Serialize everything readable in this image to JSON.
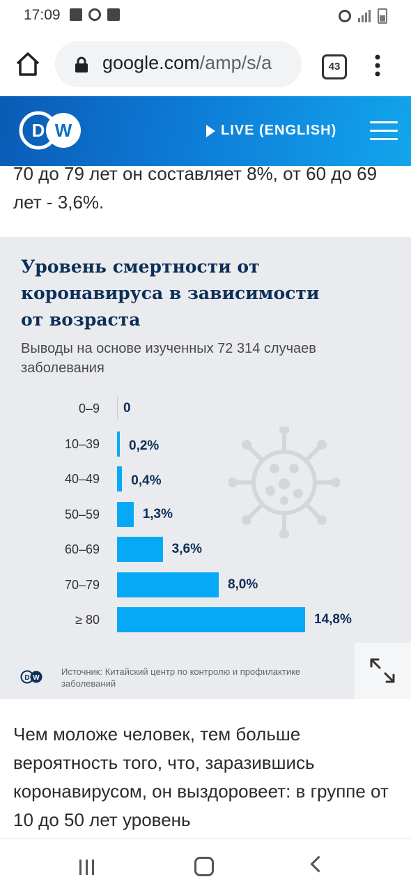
{
  "status_bar": {
    "time": "17:09"
  },
  "browser": {
    "url_host": "google.com",
    "url_path": "/amp/s/a",
    "tab_count": "43"
  },
  "site_header": {
    "logo": "DW",
    "live_label": "LIVE (ENGLISH)"
  },
  "article": {
    "text_top": "70 до 79 лет он составляет 8%, от 60 до 69 лет - 3,6%.",
    "text_bottom": "Чем моложе человек, тем больше вероятность того, что, заразившись коронавирусом, он выздоровеет: в группе от 10 до 50 лет уровень"
  },
  "infographic": {
    "title": "Уровень смертности от коронавируса в зависимости от возраста",
    "subtitle": "Выводы на основе изученных 72 314 случаев заболевания",
    "source": "Источник: Китайский центр по контролю и профилактике заболеваний"
  },
  "chart_data": {
    "type": "bar",
    "orientation": "horizontal",
    "title": "Уровень смертности от коронавируса в зависимости от возраста",
    "categories": [
      "0–9",
      "10–39",
      "40–49",
      "50–59",
      "60–69",
      "70–79",
      "≥ 80"
    ],
    "values": [
      0,
      0.2,
      0.4,
      1.3,
      3.6,
      8.0,
      14.8
    ],
    "value_labels": [
      "0",
      "0,2%",
      "0,4%",
      "1,3%",
      "3,6%",
      "8,0%",
      "14,8%"
    ],
    "xlim": [
      0,
      14.8
    ],
    "grid": false,
    "colors": {
      "bar": "#05a9f5",
      "label": "#0c2f58"
    }
  }
}
